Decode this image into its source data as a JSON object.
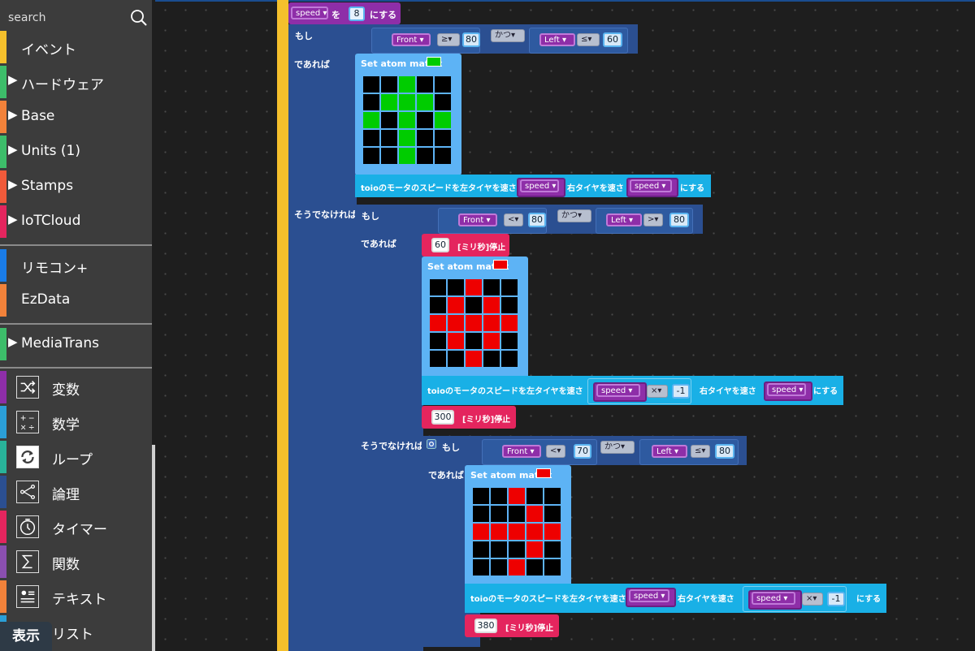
{
  "sidebar": {
    "search_placeholder": "search",
    "categories": [
      {
        "label": "イベント",
        "color": "#f5c02c",
        "arrow": ""
      },
      {
        "label": "ハードウェア",
        "color": "#3dbd6a",
        "arrow": "▶"
      },
      {
        "label": "Base",
        "color": "#f2823a",
        "arrow": "▶"
      },
      {
        "label": "Units (1)",
        "color": "#3dbd6a",
        "arrow": "▶"
      },
      {
        "label": "Stamps",
        "color": "#f05a3a",
        "arrow": "▶"
      },
      {
        "label": "IoTCloud",
        "color": "#e4255e",
        "arrow": "▶"
      },
      {
        "label": "リモコン+",
        "color": "#1a7ce8",
        "arrow": ""
      },
      {
        "label": "EzData",
        "color": "#f2823a",
        "arrow": ""
      },
      {
        "label": "MediaTrans",
        "color": "#3dbd6a",
        "arrow": "▶"
      },
      {
        "label": "変数",
        "color": "#8e2ea8",
        "icon": "shuffle-icon"
      },
      {
        "label": "数学",
        "color": "#2b9fd8",
        "icon": "math-icon"
      },
      {
        "label": "ループ",
        "color": "#29b39a",
        "icon": "loop-icon"
      },
      {
        "label": "論理",
        "color": "#2b4f91",
        "icon": "logic-icon"
      },
      {
        "label": "タイマー",
        "color": "#e4255e",
        "icon": "timer-icon"
      },
      {
        "label": "関数",
        "color": "#8a4fb0",
        "icon": "function-icon"
      },
      {
        "label": "テキスト",
        "color": "#f2823a",
        "icon": "text-icon"
      },
      {
        "label": "リスト",
        "color": "#2b9fd8",
        "icon": "list-icon"
      }
    ],
    "display_button": "表示"
  },
  "blocks": {
    "set_var": {
      "var": "speed",
      "wo": "を",
      "value": "8",
      "suru": "にする"
    },
    "if1": {
      "moshi": "もし",
      "deareba": "であれば",
      "else": "そうでなければ",
      "cond_a": {
        "sensor": "Front",
        "op": "≥",
        "value": "80"
      },
      "and": "かつ",
      "cond_b": {
        "sensor": "Left",
        "op": "≤",
        "value": "60"
      },
      "matrix_label": "Set atom matrix",
      "matrix_color": "#00cc00",
      "matrix": [
        [
          0,
          0,
          1,
          0,
          0
        ],
        [
          0,
          1,
          1,
          1,
          0
        ],
        [
          1,
          0,
          1,
          0,
          1
        ],
        [
          0,
          0,
          1,
          0,
          0
        ],
        [
          0,
          0,
          1,
          0,
          0
        ]
      ],
      "motor": {
        "prefix": "toioのモータのスピードを左タイヤを速さ",
        "left": "speed",
        "mid": "右タイヤを速さ",
        "right": "speed",
        "suffix": "にする"
      }
    },
    "if2": {
      "moshi": "もし",
      "deareba": "であれば",
      "else": "そうでなければ",
      "cond_a": {
        "sensor": "Front",
        "op": "<",
        "value": "80"
      },
      "and": "かつ",
      "cond_b": {
        "sensor": "Left",
        "op": ">",
        "value": "80"
      },
      "wait1": {
        "value": "60",
        "label": "[ミリ秒]停止"
      },
      "matrix_label": "Set atom matrix",
      "matrix_color": "#ee0000",
      "matrix": [
        [
          0,
          0,
          1,
          0,
          0
        ],
        [
          0,
          1,
          0,
          1,
          0
        ],
        [
          1,
          1,
          1,
          1,
          1
        ],
        [
          0,
          1,
          0,
          1,
          0
        ],
        [
          0,
          0,
          1,
          0,
          0
        ]
      ],
      "motor": {
        "prefix": "toioのモータのスピードを左タイヤを速さ",
        "left": "speed",
        "times": "×",
        "neg": "-1",
        "mid": "右タイヤを速さ",
        "right": "speed",
        "suffix": "にする"
      },
      "wait2": {
        "value": "300",
        "label": "[ミリ秒]停止"
      }
    },
    "if3": {
      "moshi": "もし",
      "deareba": "であれば",
      "cond_a": {
        "sensor": "Front",
        "op": "<",
        "value": "70"
      },
      "and": "かつ",
      "cond_b": {
        "sensor": "Left",
        "op": "≤",
        "value": "80"
      },
      "matrix_label": "Set atom matrix",
      "matrix_color": "#ee0000",
      "matrix": [
        [
          0,
          0,
          1,
          0,
          0
        ],
        [
          0,
          0,
          0,
          1,
          0
        ],
        [
          1,
          1,
          1,
          1,
          1
        ],
        [
          0,
          0,
          0,
          1,
          0
        ],
        [
          0,
          0,
          1,
          0,
          0
        ]
      ],
      "motor": {
        "prefix": "toioのモータのスピードを左タイヤを速さ",
        "left": "speed",
        "mid": "右タイヤを速さ",
        "right": "speed",
        "times": "×",
        "neg": "-1",
        "suffix": "にする"
      },
      "wait": {
        "value": "380",
        "label": "[ミリ秒]停止"
      }
    }
  }
}
